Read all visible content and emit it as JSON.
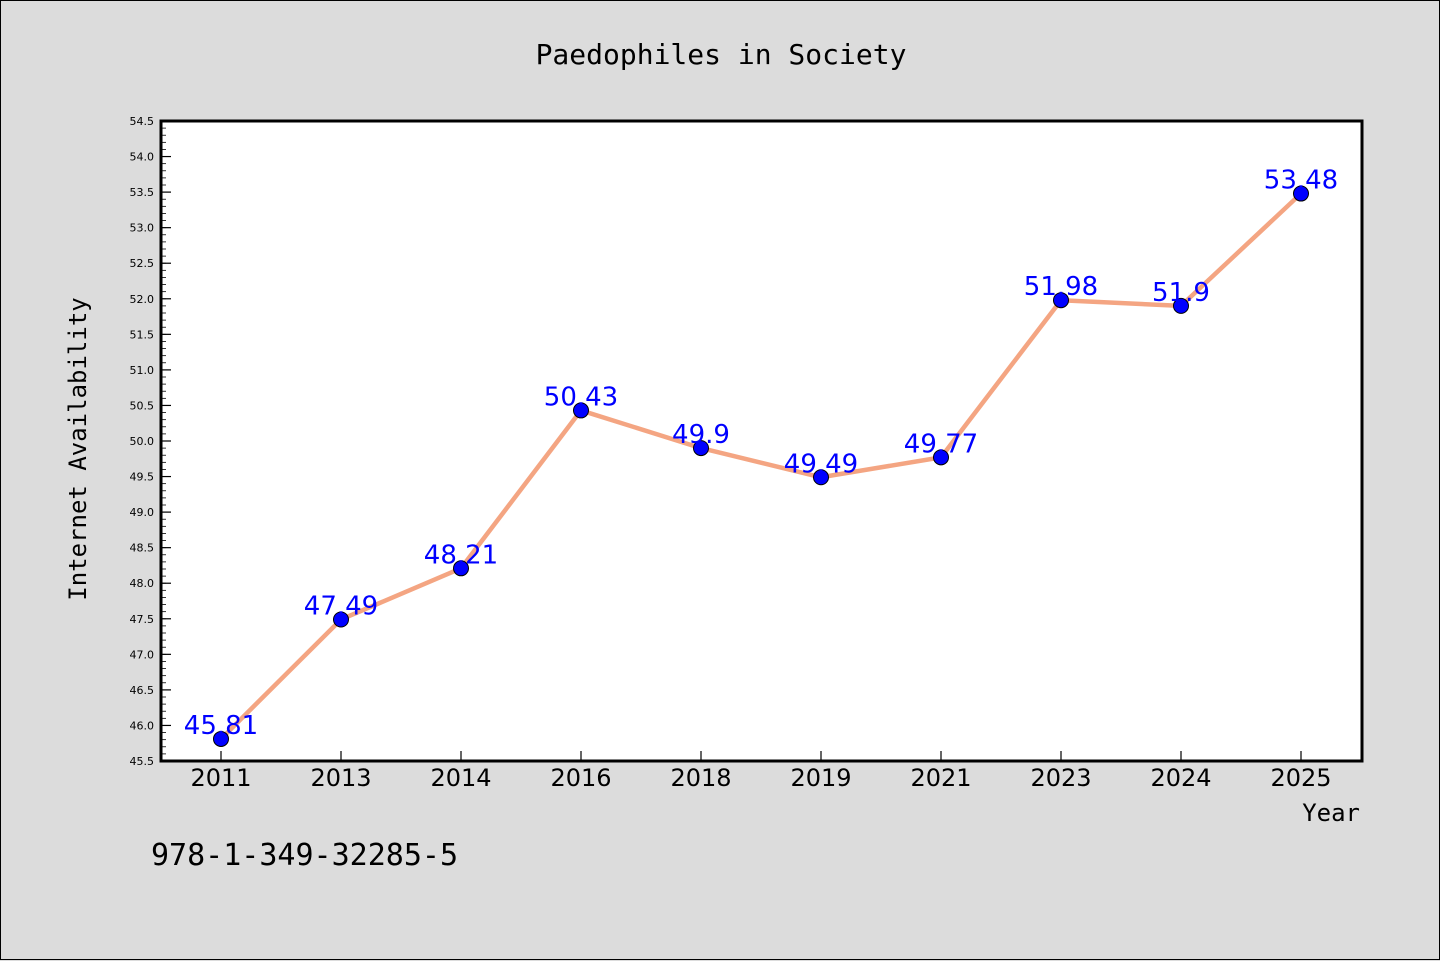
{
  "chart_data": {
    "type": "line",
    "title": "Paedophiles in Society",
    "xlabel": "Year",
    "ylabel": "Internet Availability",
    "categories": [
      "2011",
      "2013",
      "2014",
      "2016",
      "2018",
      "2019",
      "2021",
      "2023",
      "2024",
      "2025"
    ],
    "values": [
      45.81,
      47.49,
      48.21,
      50.43,
      49.9,
      49.49,
      49.77,
      51.98,
      51.9,
      53.48
    ],
    "data_labels": [
      "45.81",
      "47.49",
      "48.21",
      "50.43",
      "49.9",
      "49.49",
      "49.77",
      "51.98",
      "51.9",
      "53.48"
    ],
    "ylim": [
      45.5,
      54.5
    ],
    "yticks": [
      "45.5",
      "46.0",
      "46.5",
      "47.0",
      "47.5",
      "48.0",
      "48.5",
      "49.0",
      "49.5",
      "50.0",
      "50.5",
      "51.0",
      "51.5",
      "52.0",
      "52.5",
      "53.0",
      "53.5",
      "54.0",
      "54.5"
    ],
    "grid": false,
    "line_color": "#f4a582",
    "marker_color": "#0000ff",
    "label_color": "#0000ff",
    "background": "#dcdcdc",
    "plot_background": "#ffffff"
  },
  "footer_text": "978-1-349-32285-5"
}
